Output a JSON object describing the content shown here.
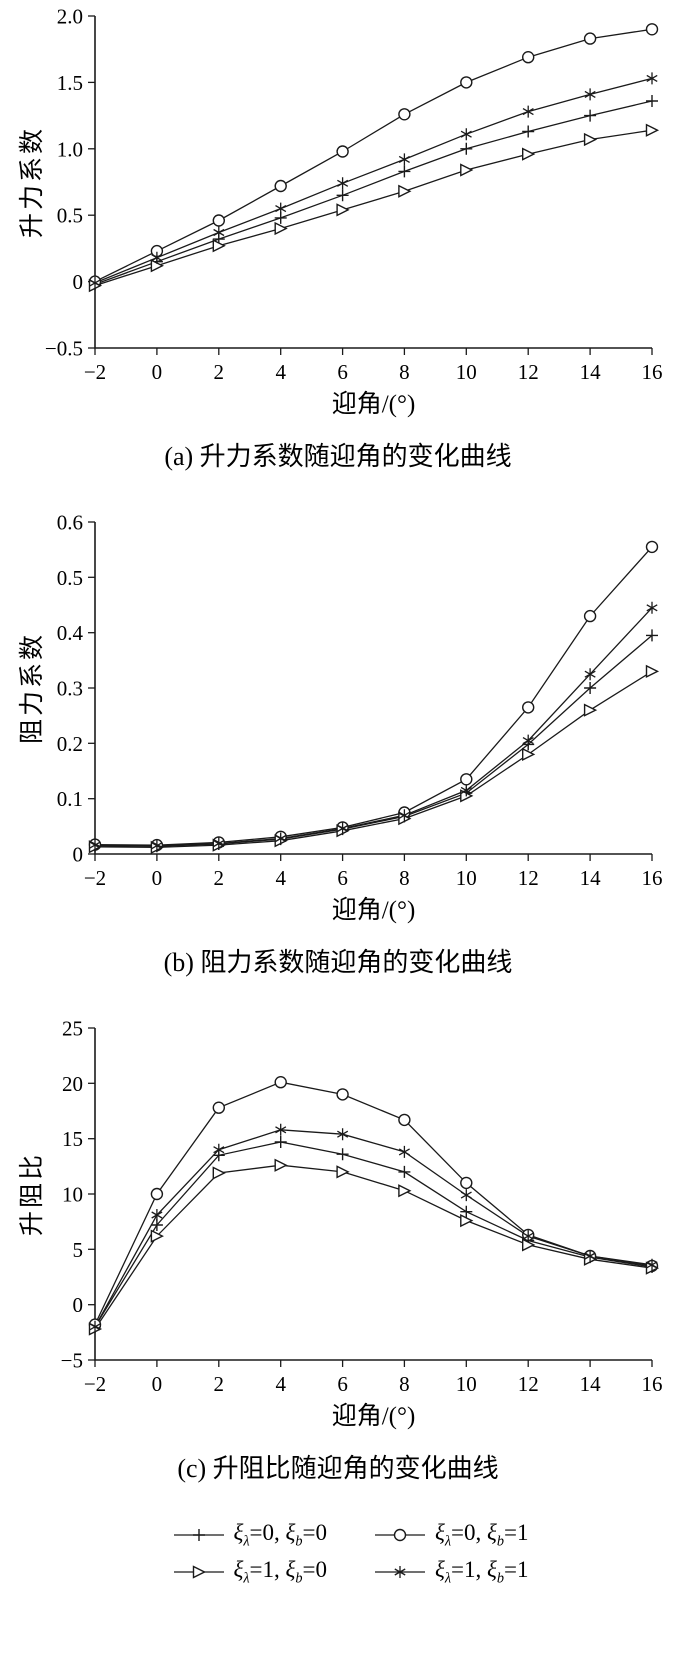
{
  "colors": {
    "line": "#1a1a1a",
    "text": "#000000",
    "background": "#ffffff"
  },
  "chart_data": [
    {
      "type": "line",
      "panel": "a",
      "caption": "(a) 升力系数随迎角的变化曲线",
      "xlabel": "迎角/(°)",
      "ylabel": "升力系数",
      "x": [
        -2,
        0,
        2,
        4,
        6,
        8,
        10,
        12,
        14,
        16
      ],
      "xlim": [
        -2,
        16
      ],
      "ylim": [
        -0.5,
        2.0
      ],
      "xticks": [
        -2,
        0,
        2,
        4,
        6,
        8,
        10,
        12,
        14,
        16
      ],
      "xtick_labels": [
        "−2",
        "0",
        "2",
        "4",
        "6",
        "8",
        "10",
        "12",
        "14",
        "16"
      ],
      "yticks": [
        -0.5,
        0,
        0.5,
        1.0,
        1.5,
        2.0
      ],
      "ytick_labels": [
        "−0.5",
        "0",
        "0.5",
        "1.0",
        "1.5",
        "2.0"
      ],
      "grid": false,
      "legend_position": "none",
      "series": [
        {
          "name": "ξλ=0, ξb=0",
          "marker": "plus",
          "values": [
            -0.02,
            0.15,
            0.32,
            0.48,
            0.65,
            0.83,
            1.0,
            1.13,
            1.25,
            1.36
          ]
        },
        {
          "name": "ξλ=0, ξb=1",
          "marker": "circle",
          "values": [
            0.0,
            0.23,
            0.46,
            0.72,
            0.98,
            1.26,
            1.5,
            1.69,
            1.83,
            1.9
          ]
        },
        {
          "name": "ξλ=1, ξb=0",
          "marker": "triangle-right",
          "values": [
            -0.03,
            0.12,
            0.27,
            0.4,
            0.54,
            0.68,
            0.84,
            0.96,
            1.07,
            1.14
          ]
        },
        {
          "name": "ξλ=1, ξb=1",
          "marker": "asterisk",
          "values": [
            -0.01,
            0.18,
            0.37,
            0.55,
            0.74,
            0.92,
            1.11,
            1.28,
            1.41,
            1.53
          ]
        }
      ]
    },
    {
      "type": "line",
      "panel": "b",
      "caption": "(b) 阻力系数随迎角的变化曲线",
      "xlabel": "迎角/(°)",
      "ylabel": "阻力系数",
      "x": [
        -2,
        0,
        2,
        4,
        6,
        8,
        10,
        12,
        14,
        16
      ],
      "xlim": [
        -2,
        16
      ],
      "ylim": [
        0,
        0.6
      ],
      "xticks": [
        -2,
        0,
        2,
        4,
        6,
        8,
        10,
        12,
        14,
        16
      ],
      "xtick_labels": [
        "−2",
        "0",
        "2",
        "4",
        "6",
        "8",
        "10",
        "12",
        "14",
        "16"
      ],
      "yticks": [
        0,
        0.1,
        0.2,
        0.3,
        0.4,
        0.5,
        0.6
      ],
      "ytick_labels": [
        "0",
        "0.1",
        "0.2",
        "0.3",
        "0.4",
        "0.5",
        "0.6"
      ],
      "grid": false,
      "legend_position": "none",
      "series": [
        {
          "name": "ξλ=0, ξb=0",
          "marker": "plus",
          "values": [
            0.015,
            0.014,
            0.018,
            0.027,
            0.045,
            0.068,
            0.11,
            0.198,
            0.3,
            0.395
          ]
        },
        {
          "name": "ξλ=0, ξb=1",
          "marker": "circle",
          "values": [
            0.017,
            0.016,
            0.021,
            0.031,
            0.048,
            0.075,
            0.135,
            0.265,
            0.43,
            0.555
          ]
        },
        {
          "name": "ξλ=1, ξb=0",
          "marker": "triangle-right",
          "values": [
            0.013,
            0.012,
            0.016,
            0.024,
            0.042,
            0.064,
            0.105,
            0.18,
            0.26,
            0.33
          ]
        },
        {
          "name": "ξλ=1, ξb=1",
          "marker": "asterisk",
          "values": [
            0.016,
            0.015,
            0.019,
            0.028,
            0.046,
            0.07,
            0.115,
            0.205,
            0.325,
            0.445
          ]
        }
      ]
    },
    {
      "type": "line",
      "panel": "c",
      "caption": "(c) 升阻比随迎角的变化曲线",
      "xlabel": "迎角/(°)",
      "ylabel": "升阻比",
      "x": [
        -2,
        0,
        2,
        4,
        6,
        8,
        10,
        12,
        14,
        16
      ],
      "xlim": [
        -2,
        16
      ],
      "ylim": [
        -5,
        25
      ],
      "xticks": [
        -2,
        0,
        2,
        4,
        6,
        8,
        10,
        12,
        14,
        16
      ],
      "xtick_labels": [
        "−2",
        "0",
        "2",
        "4",
        "6",
        "8",
        "10",
        "12",
        "14",
        "16"
      ],
      "yticks": [
        -5,
        0,
        5,
        10,
        15,
        20,
        25
      ],
      "ytick_labels": [
        "−5",
        "0",
        "5",
        "10",
        "15",
        "20",
        "25"
      ],
      "grid": false,
      "legend_position": "none",
      "series": [
        {
          "name": "ξλ=0, ξb=0",
          "marker": "plus",
          "values": [
            -2.0,
            7.2,
            13.5,
            14.7,
            13.6,
            12.0,
            8.4,
            5.8,
            4.3,
            3.4
          ]
        },
        {
          "name": "ξλ=0, ξb=1",
          "marker": "circle",
          "values": [
            -1.8,
            10.0,
            17.8,
            20.1,
            19.0,
            16.7,
            11.0,
            6.3,
            4.4,
            3.5
          ]
        },
        {
          "name": "ξλ=1, ξb=0",
          "marker": "triangle-right",
          "values": [
            -2.2,
            6.2,
            11.9,
            12.6,
            12.0,
            10.3,
            7.6,
            5.4,
            4.1,
            3.3
          ]
        },
        {
          "name": "ξλ=1, ξb=1",
          "marker": "asterisk",
          "values": [
            -2.0,
            8.1,
            14.0,
            15.8,
            15.4,
            13.8,
            9.9,
            6.2,
            4.4,
            3.6
          ]
        }
      ]
    }
  ],
  "legend": {
    "position": "below-figure",
    "rows": 2,
    "columns": 2,
    "items": [
      {
        "marker": "plus",
        "label": "ξ_{λ}=0, ξ_{b}=0"
      },
      {
        "marker": "circle",
        "label": "ξ_{λ}=0, ξ_{b}=1"
      },
      {
        "marker": "triangle-right",
        "label": "ξ_{λ}=1, ξ_{b}=0"
      },
      {
        "marker": "asterisk",
        "label": "ξ_{λ}=1, ξ_{b}=1"
      }
    ]
  }
}
